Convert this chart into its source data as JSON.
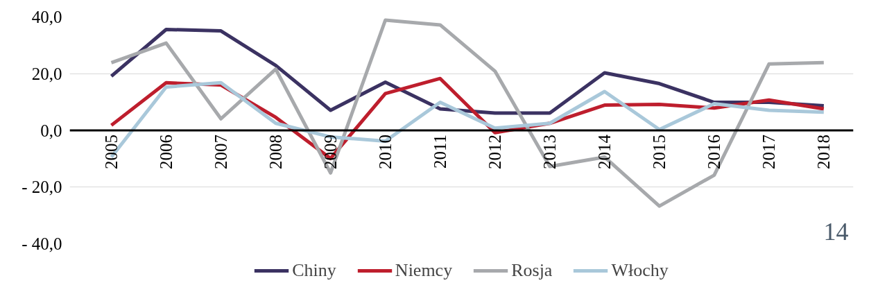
{
  "chart_data": {
    "type": "line",
    "categories": [
      "2005",
      "2006",
      "2007",
      "2008",
      "2009",
      "2010",
      "2011",
      "2012",
      "2013",
      "2014",
      "2015",
      "2016",
      "2017",
      "2018"
    ],
    "series": [
      {
        "name": "Chiny",
        "color": "#3b3262",
        "values": [
          19.1,
          35.6,
          35.1,
          22.9,
          7.1,
          17.0,
          7.6,
          6.1,
          6.1,
          20.3,
          16.5,
          9.9,
          9.9,
          8.7
        ]
      },
      {
        "name": "Niemcy",
        "color": "#be1e2d",
        "values": [
          1.8,
          16.8,
          16.0,
          4.6,
          -9.9,
          13.0,
          18.3,
          -0.8,
          2.5,
          8.9,
          9.2,
          7.9,
          10.7,
          7.6
        ]
      },
      {
        "name": "Rosja",
        "color": "#a7a9ac",
        "values": [
          23.9,
          30.8,
          4.1,
          21.6,
          -15.0,
          38.9,
          37.2,
          20.9,
          -12.7,
          -9.4,
          -26.7,
          -15.8,
          23.4,
          23.9
        ]
      },
      {
        "name": "Włochy",
        "color": "#a9c8da",
        "values": [
          -9.4,
          15.3,
          16.8,
          2.5,
          -2.3,
          -3.8,
          9.9,
          0.8,
          2.5,
          13.7,
          0.3,
          9.4,
          7.1,
          6.4
        ]
      }
    ],
    "ylim": [
      -40,
      40
    ],
    "yticks": [
      {
        "value": -40,
        "label": "- 40,0"
      },
      {
        "value": -20,
        "label": "- 20,0"
      },
      {
        "value": 0,
        "label": "0,0"
      },
      {
        "value": 20,
        "label": "20,0"
      },
      {
        "value": 40,
        "label": "40,0"
      }
    ],
    "grid": "y",
    "legend": "bottom",
    "marker": "none",
    "line_style": "solid",
    "annotations": [
      "14"
    ]
  }
}
